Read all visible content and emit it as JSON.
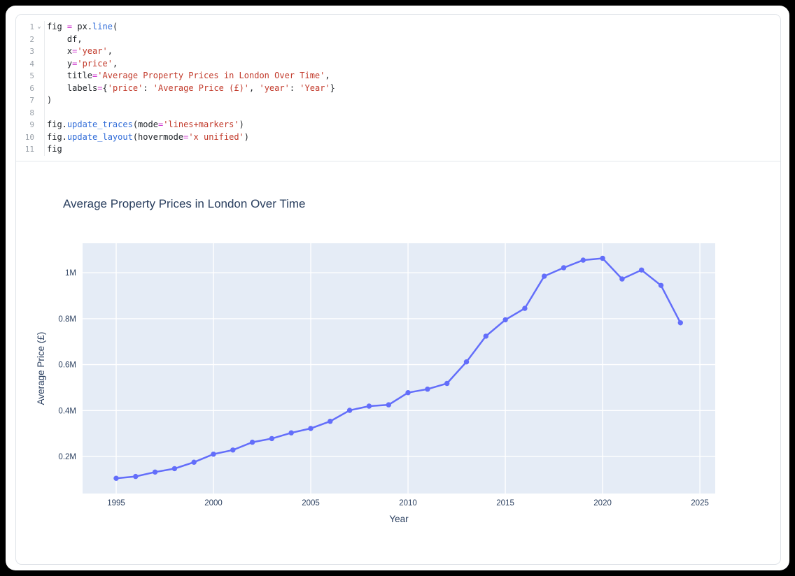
{
  "window": {
    "background": "#000000",
    "surface": "#ffffff"
  },
  "editor": {
    "colors": {
      "default": "#1f2328",
      "operator": "#cf3ccf",
      "function": "#2f6bd8",
      "string": "#c23a2b",
      "line_number": "#9aa1a9"
    },
    "fold_icon": "⌄",
    "lines": [
      {
        "n": "1",
        "fold": true,
        "tokens": [
          [
            "fig ",
            "d"
          ],
          [
            "=",
            "o"
          ],
          [
            " px.",
            "d"
          ],
          [
            "line",
            "f"
          ],
          [
            "(",
            "d"
          ]
        ]
      },
      {
        "n": "2",
        "fold": false,
        "tokens": [
          [
            "    df,",
            "d"
          ]
        ]
      },
      {
        "n": "3",
        "fold": false,
        "tokens": [
          [
            "    x",
            "d"
          ],
          [
            "=",
            "o"
          ],
          [
            "'year'",
            "s"
          ],
          [
            ",",
            "d"
          ]
        ]
      },
      {
        "n": "4",
        "fold": false,
        "tokens": [
          [
            "    y",
            "d"
          ],
          [
            "=",
            "o"
          ],
          [
            "'price'",
            "s"
          ],
          [
            ",",
            "d"
          ]
        ]
      },
      {
        "n": "5",
        "fold": false,
        "tokens": [
          [
            "    title",
            "d"
          ],
          [
            "=",
            "o"
          ],
          [
            "'Average Property Prices in London Over Time'",
            "s"
          ],
          [
            ",",
            "d"
          ]
        ]
      },
      {
        "n": "6",
        "fold": false,
        "tokens": [
          [
            "    labels",
            "d"
          ],
          [
            "=",
            "o"
          ],
          [
            "{",
            "d"
          ],
          [
            "'price'",
            "s"
          ],
          [
            ": ",
            "d"
          ],
          [
            "'Average Price (£)'",
            "s"
          ],
          [
            ", ",
            "d"
          ],
          [
            "'year'",
            "s"
          ],
          [
            ": ",
            "d"
          ],
          [
            "'Year'",
            "s"
          ],
          [
            "}",
            "d"
          ]
        ]
      },
      {
        "n": "7",
        "fold": false,
        "tokens": [
          [
            ")",
            "d"
          ]
        ]
      },
      {
        "n": "8",
        "fold": false,
        "tokens": []
      },
      {
        "n": "9",
        "fold": false,
        "tokens": [
          [
            "fig.",
            "d"
          ],
          [
            "update_traces",
            "f"
          ],
          [
            "(mode",
            "d"
          ],
          [
            "=",
            "o"
          ],
          [
            "'lines+markers'",
            "s"
          ],
          [
            ")",
            "d"
          ]
        ]
      },
      {
        "n": "10",
        "fold": false,
        "tokens": [
          [
            "fig.",
            "d"
          ],
          [
            "update_layout",
            "f"
          ],
          [
            "(hovermode",
            "d"
          ],
          [
            "=",
            "o"
          ],
          [
            "'x unified'",
            "s"
          ],
          [
            ")",
            "d"
          ]
        ]
      },
      {
        "n": "11",
        "fold": false,
        "tokens": [
          [
            "fig",
            "d"
          ]
        ]
      }
    ]
  },
  "chart_data": {
    "type": "line",
    "mode": "lines+markers",
    "title": "Average Property Prices in London Over Time",
    "xlabel": "Year",
    "ylabel": "Average Price (£)",
    "units": "millions GBP",
    "x": [
      1995,
      1996,
      1997,
      1998,
      1999,
      2000,
      2001,
      2002,
      2003,
      2004,
      2005,
      2006,
      2007,
      2008,
      2009,
      2010,
      2011,
      2012,
      2013,
      2014,
      2015,
      2016,
      2017,
      2018,
      2019,
      2020,
      2021,
      2022,
      2023,
      2024
    ],
    "series": [
      {
        "name": "price",
        "values": [
          0.105,
          0.113,
          0.132,
          0.147,
          0.175,
          0.21,
          0.228,
          0.262,
          0.278,
          0.303,
          0.322,
          0.353,
          0.401,
          0.419,
          0.425,
          0.478,
          0.493,
          0.518,
          0.612,
          0.724,
          0.795,
          0.845,
          0.985,
          1.022,
          1.055,
          1.063,
          0.973,
          1.012,
          0.945,
          0.782
        ]
      }
    ],
    "x_ticks": [
      1995,
      2000,
      2005,
      2010,
      2015,
      2020,
      2025
    ],
    "y_ticks": [
      {
        "v": 0.2,
        "label": "0.2M"
      },
      {
        "v": 0.4,
        "label": "0.4M"
      },
      {
        "v": 0.6,
        "label": "0.6M"
      },
      {
        "v": 0.8,
        "label": "0.8M"
      },
      {
        "v": 1.0,
        "label": "1M"
      }
    ],
    "xlim": [
      1993.273,
      2025.788
    ],
    "ylim": [
      0.0386,
      1.1285
    ],
    "grid": true,
    "legend": false,
    "line_color": "#636efa",
    "plot_bg": "#e5ecf6",
    "grid_color": "#ffffff",
    "font_color": "#2a3f5f"
  }
}
